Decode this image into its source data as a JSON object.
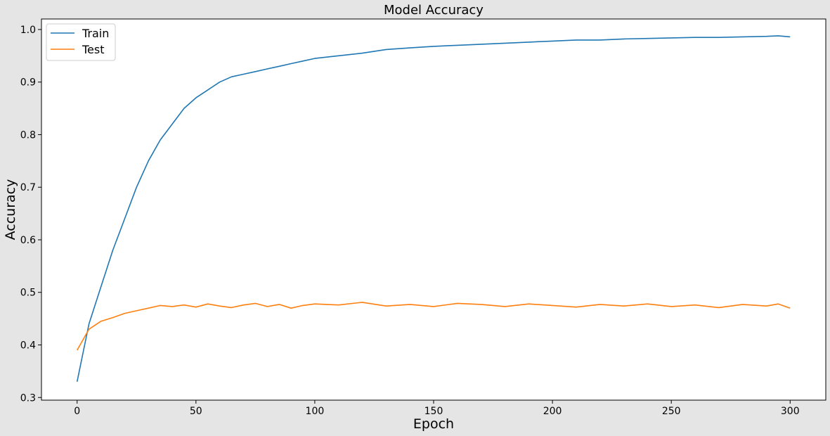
{
  "chart_data": {
    "type": "line",
    "title": "Model Accuracy",
    "xlabel": "Epoch",
    "ylabel": "Accuracy",
    "xlim": [
      -15,
      315
    ],
    "ylim": [
      0.295,
      1.02
    ],
    "xticks": [
      0,
      50,
      100,
      150,
      200,
      250,
      300
    ],
    "yticks": [
      0.3,
      0.4,
      0.5,
      0.6,
      0.7,
      0.8,
      0.9,
      1.0
    ],
    "ytick_labels": [
      "0.3",
      "0.4",
      "0.5",
      "0.6",
      "0.7",
      "0.8",
      "0.9",
      "1.0"
    ],
    "grid": false,
    "legend": "top-left",
    "x": [
      0,
      5,
      10,
      15,
      20,
      25,
      30,
      35,
      40,
      45,
      50,
      55,
      60,
      65,
      70,
      75,
      80,
      85,
      90,
      95,
      100,
      110,
      120,
      130,
      140,
      150,
      160,
      170,
      180,
      190,
      200,
      210,
      220,
      230,
      240,
      250,
      260,
      270,
      280,
      290,
      295,
      300
    ],
    "series": [
      {
        "name": "Train",
        "color": "#1f77b4",
        "values": [
          0.33,
          0.44,
          0.51,
          0.58,
          0.64,
          0.7,
          0.75,
          0.79,
          0.82,
          0.85,
          0.87,
          0.885,
          0.9,
          0.91,
          0.915,
          0.92,
          0.925,
          0.93,
          0.935,
          0.94,
          0.945,
          0.95,
          0.955,
          0.962,
          0.965,
          0.968,
          0.97,
          0.972,
          0.974,
          0.976,
          0.978,
          0.98,
          0.98,
          0.982,
          0.983,
          0.984,
          0.985,
          0.985,
          0.986,
          0.987,
          0.988,
          0.986
        ]
      },
      {
        "name": "Test",
        "color": "#ff7f0e",
        "values": [
          0.39,
          0.43,
          0.445,
          0.452,
          0.46,
          0.465,
          0.47,
          0.475,
          0.473,
          0.476,
          0.472,
          0.478,
          0.474,
          0.471,
          0.476,
          0.479,
          0.473,
          0.477,
          0.47,
          0.475,
          0.478,
          0.476,
          0.481,
          0.474,
          0.477,
          0.473,
          0.479,
          0.477,
          0.473,
          0.478,
          0.475,
          0.472,
          0.477,
          0.474,
          0.478,
          0.473,
          0.476,
          0.471,
          0.477,
          0.474,
          0.478,
          0.47
        ]
      }
    ]
  }
}
